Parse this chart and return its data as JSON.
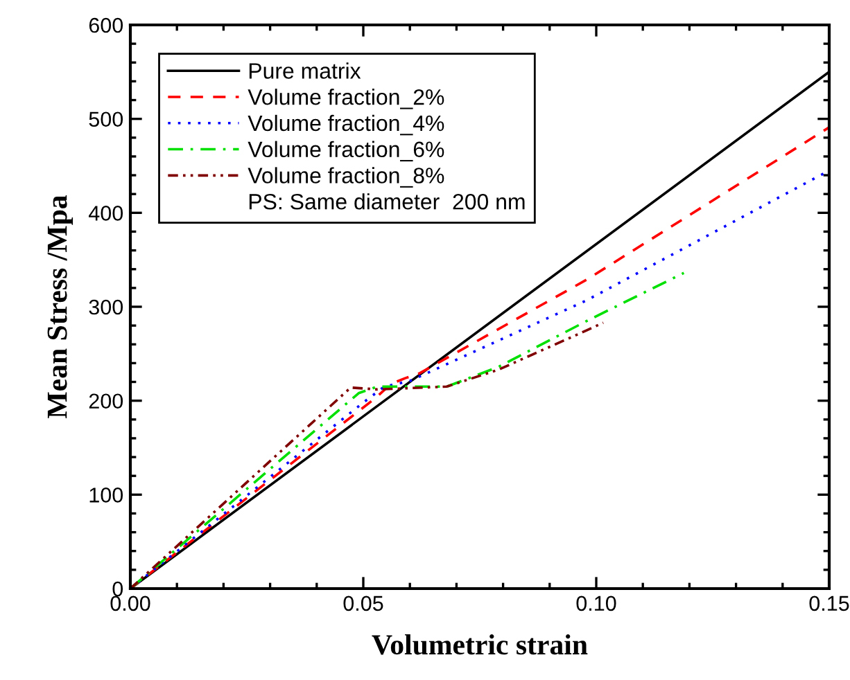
{
  "chart_data": {
    "type": "line",
    "xlabel": "Volumetric strain",
    "ylabel": "Mean Stress /Mpa",
    "xlim": [
      0,
      0.15
    ],
    "ylim": [
      0,
      600
    ],
    "xticks": [
      {
        "value": 0,
        "label": "0.00"
      },
      {
        "value": 0.05,
        "label": "0.05"
      },
      {
        "value": 0.1,
        "label": "0.10"
      },
      {
        "value": 0.15,
        "label": "0.15"
      }
    ],
    "yticks": [
      0,
      100,
      200,
      300,
      400,
      500,
      600
    ],
    "grid": false,
    "legend": "top left",
    "marker": "none",
    "annotations": [
      "PS: Same diameter  200 nm"
    ],
    "series": [
      {
        "name": "Pure matrix",
        "color": "#000000",
        "line_style": "solid",
        "x": [
          0,
          0.15
        ],
        "values": [
          0,
          550
        ]
      },
      {
        "name": "Volume fraction_2%",
        "color": "#ff0000",
        "line_style": "dashed",
        "x": [
          0,
          0.0524,
          0.056,
          0.059,
          0.062,
          0.098,
          0.15
        ],
        "values": [
          0,
          202,
          218,
          224,
          229,
          329,
          491
        ]
      },
      {
        "name": "Volume fraction_4%",
        "color": "#0000ff",
        "line_style": "dotted",
        "x": [
          0,
          0.05,
          0.0545,
          0.06,
          0.098,
          0.15
        ],
        "values": [
          0,
          198,
          215,
          221,
          307,
          445
        ]
      },
      {
        "name": "Volume fraction_6%",
        "color": "#00e000",
        "line_style": "dashdot",
        "x": [
          0,
          0.049,
          0.053,
          0.0679,
          0.079,
          0.098,
          0.1188
        ],
        "values": [
          0,
          208,
          215,
          215,
          236,
          285,
          336
        ]
      },
      {
        "name": "Volume fraction_8%",
        "color": "#800000",
        "line_style": "dashdotdot",
        "x": [
          0,
          0.0473,
          0.053,
          0.0679,
          0.079,
          0.098,
          0.1015
        ],
        "values": [
          0,
          214,
          212,
          215,
          233,
          275,
          283
        ]
      }
    ]
  }
}
